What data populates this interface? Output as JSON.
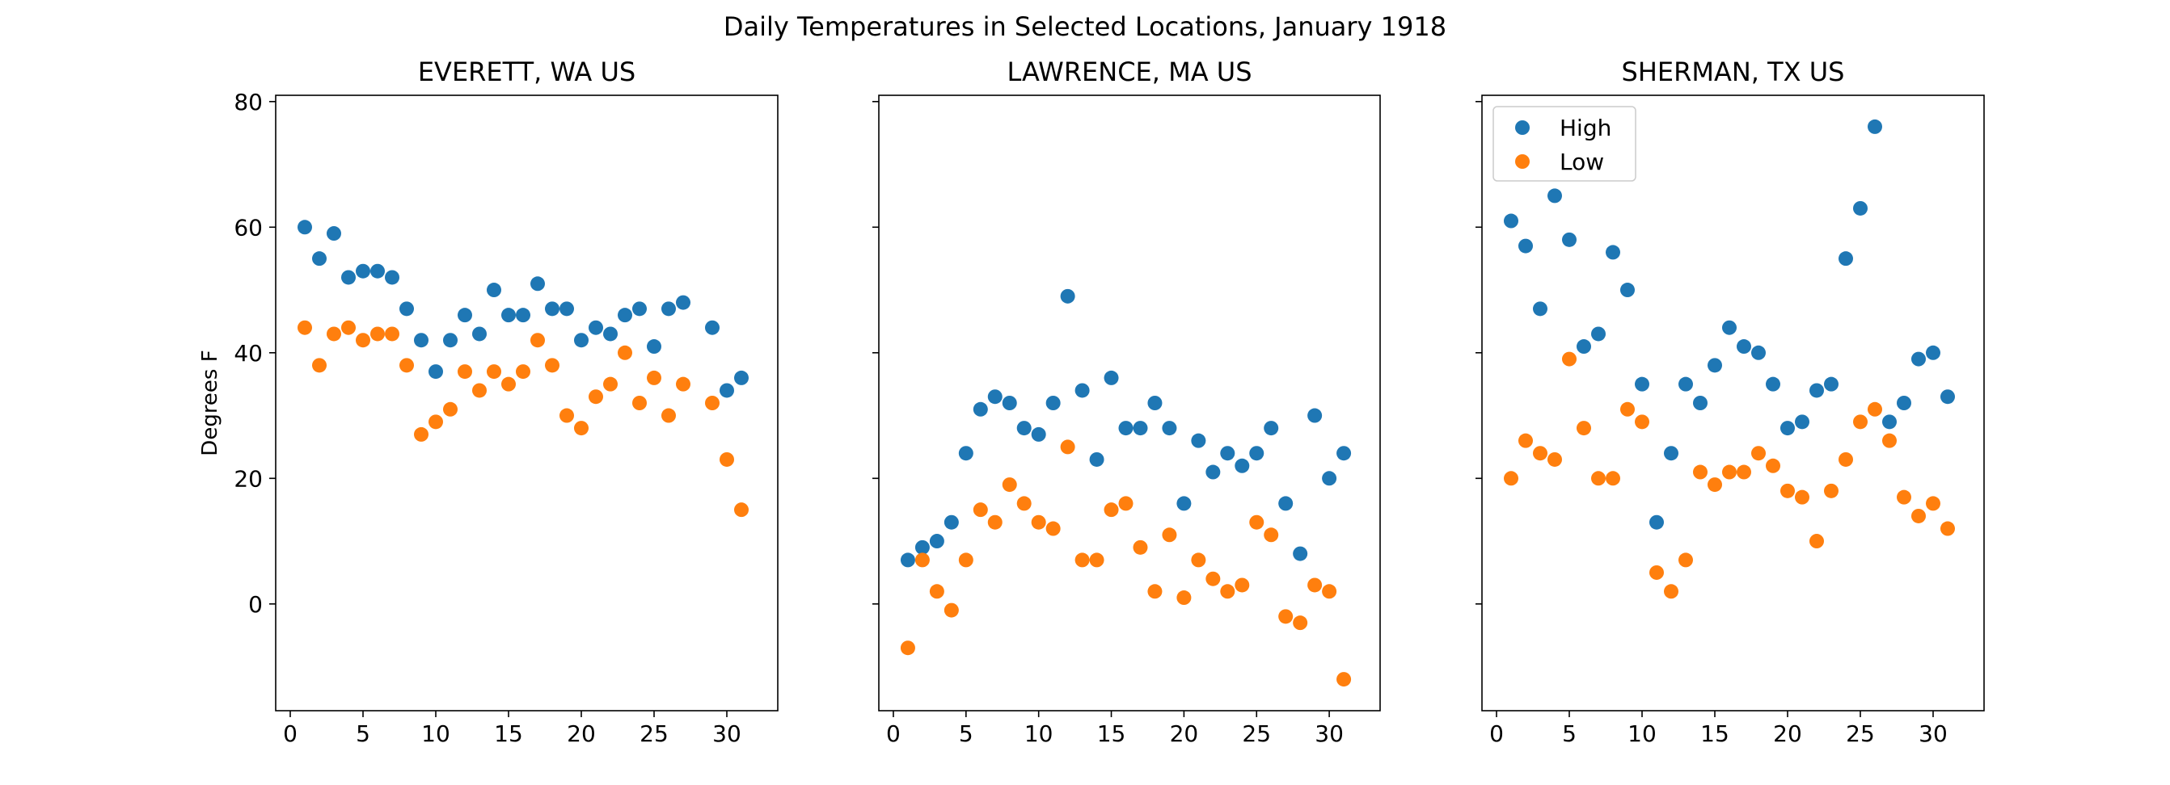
{
  "title": "Daily Temperatures in Selected Locations, January 1918",
  "chart_data": [
    {
      "type": "scatter",
      "title": "EVERETT, WA US",
      "xlabel": "",
      "ylabel": "Degrees F",
      "xlim": [
        -1,
        33.5
      ],
      "ylim": [
        -17,
        81
      ],
      "xticks": [
        0,
        5,
        10,
        15,
        20,
        25,
        30
      ],
      "yticks": [
        0,
        20,
        40,
        60,
        80
      ],
      "legend": null,
      "series": [
        {
          "name": "High",
          "color": "#1f77b4",
          "x": [
            1,
            2,
            3,
            4,
            5,
            6,
            7,
            8,
            9,
            10,
            11,
            12,
            13,
            14,
            15,
            16,
            17,
            18,
            19,
            20,
            21,
            22,
            23,
            24,
            25,
            26,
            27,
            29,
            30,
            31
          ],
          "y": [
            60,
            55,
            59,
            52,
            53,
            53,
            52,
            47,
            42,
            37,
            42,
            46,
            43,
            50,
            46,
            46,
            51,
            47,
            47,
            42,
            44,
            43,
            46,
            47,
            41,
            47,
            48,
            44,
            34,
            36
          ]
        },
        {
          "name": "Low",
          "color": "#ff7f0e",
          "x": [
            1,
            2,
            3,
            4,
            5,
            6,
            7,
            8,
            9,
            10,
            11,
            12,
            13,
            14,
            15,
            16,
            17,
            18,
            19,
            20,
            21,
            22,
            23,
            24,
            25,
            26,
            27,
            29,
            30,
            31
          ],
          "y": [
            44,
            38,
            43,
            44,
            42,
            43,
            43,
            38,
            27,
            29,
            31,
            37,
            34,
            37,
            35,
            37,
            42,
            38,
            30,
            28,
            33,
            35,
            40,
            32,
            36,
            30,
            35,
            32,
            23,
            15
          ]
        }
      ]
    },
    {
      "type": "scatter",
      "title": "LAWRENCE, MA US",
      "xlabel": "",
      "ylabel": "",
      "xlim": [
        -1,
        33.5
      ],
      "ylim": [
        -17,
        81
      ],
      "xticks": [
        0,
        5,
        10,
        15,
        20,
        25,
        30
      ],
      "yticks": [
        0,
        20,
        40,
        60,
        80
      ],
      "legend": null,
      "series": [
        {
          "name": "High",
          "color": "#1f77b4",
          "x": [
            1,
            2,
            3,
            4,
            5,
            6,
            7,
            8,
            9,
            10,
            11,
            12,
            13,
            14,
            15,
            16,
            17,
            18,
            19,
            20,
            21,
            22,
            23,
            24,
            25,
            26,
            27,
            28,
            29,
            30,
            31
          ],
          "y": [
            7,
            9,
            10,
            13,
            24,
            31,
            33,
            32,
            28,
            27,
            32,
            49,
            34,
            23,
            36,
            28,
            28,
            32,
            28,
            16,
            26,
            21,
            24,
            22,
            24,
            28,
            16,
            8,
            30,
            20,
            24
          ]
        },
        {
          "name": "Low",
          "color": "#ff7f0e",
          "x": [
            1,
            2,
            3,
            4,
            5,
            6,
            7,
            8,
            9,
            10,
            11,
            12,
            13,
            14,
            15,
            16,
            17,
            18,
            19,
            20,
            21,
            22,
            23,
            24,
            25,
            26,
            27,
            28,
            29,
            30,
            31
          ],
          "y": [
            -7,
            7,
            2,
            -1,
            7,
            15,
            13,
            19,
            16,
            13,
            12,
            25,
            7,
            7,
            15,
            16,
            9,
            2,
            11,
            1,
            7,
            4,
            2,
            3,
            13,
            11,
            -2,
            -3,
            3,
            2,
            -12
          ]
        }
      ]
    },
    {
      "type": "scatter",
      "title": "SHERMAN, TX US",
      "xlabel": "",
      "ylabel": "",
      "xlim": [
        -1,
        33.5
      ],
      "ylim": [
        -17,
        81
      ],
      "xticks": [
        0,
        5,
        10,
        15,
        20,
        25,
        30
      ],
      "yticks": [
        0,
        20,
        40,
        60,
        80
      ],
      "legend": "upper left",
      "series": [
        {
          "name": "High",
          "color": "#1f77b4",
          "x": [
            1,
            2,
            3,
            4,
            5,
            6,
            7,
            8,
            9,
            10,
            11,
            12,
            13,
            14,
            15,
            16,
            17,
            18,
            19,
            20,
            21,
            22,
            23,
            24,
            25,
            26,
            27,
            28,
            29,
            30,
            31
          ],
          "y": [
            61,
            57,
            47,
            65,
            58,
            41,
            43,
            56,
            50,
            35,
            13,
            24,
            35,
            32,
            38,
            44,
            41,
            40,
            35,
            28,
            29,
            34,
            35,
            55,
            63,
            76,
            29,
            32,
            39,
            40,
            33
          ]
        },
        {
          "name": "Low",
          "color": "#ff7f0e",
          "x": [
            1,
            2,
            3,
            4,
            5,
            6,
            7,
            8,
            9,
            10,
            11,
            12,
            13,
            14,
            15,
            16,
            17,
            18,
            19,
            20,
            21,
            22,
            23,
            24,
            25,
            26,
            27,
            28,
            29,
            30,
            31
          ],
          "y": [
            20,
            26,
            24,
            23,
            39,
            28,
            20,
            20,
            31,
            29,
            5,
            2,
            7,
            21,
            19,
            21,
            21,
            24,
            22,
            18,
            17,
            10,
            18,
            23,
            29,
            31,
            26,
            17,
            14,
            16,
            12
          ]
        }
      ]
    }
  ]
}
